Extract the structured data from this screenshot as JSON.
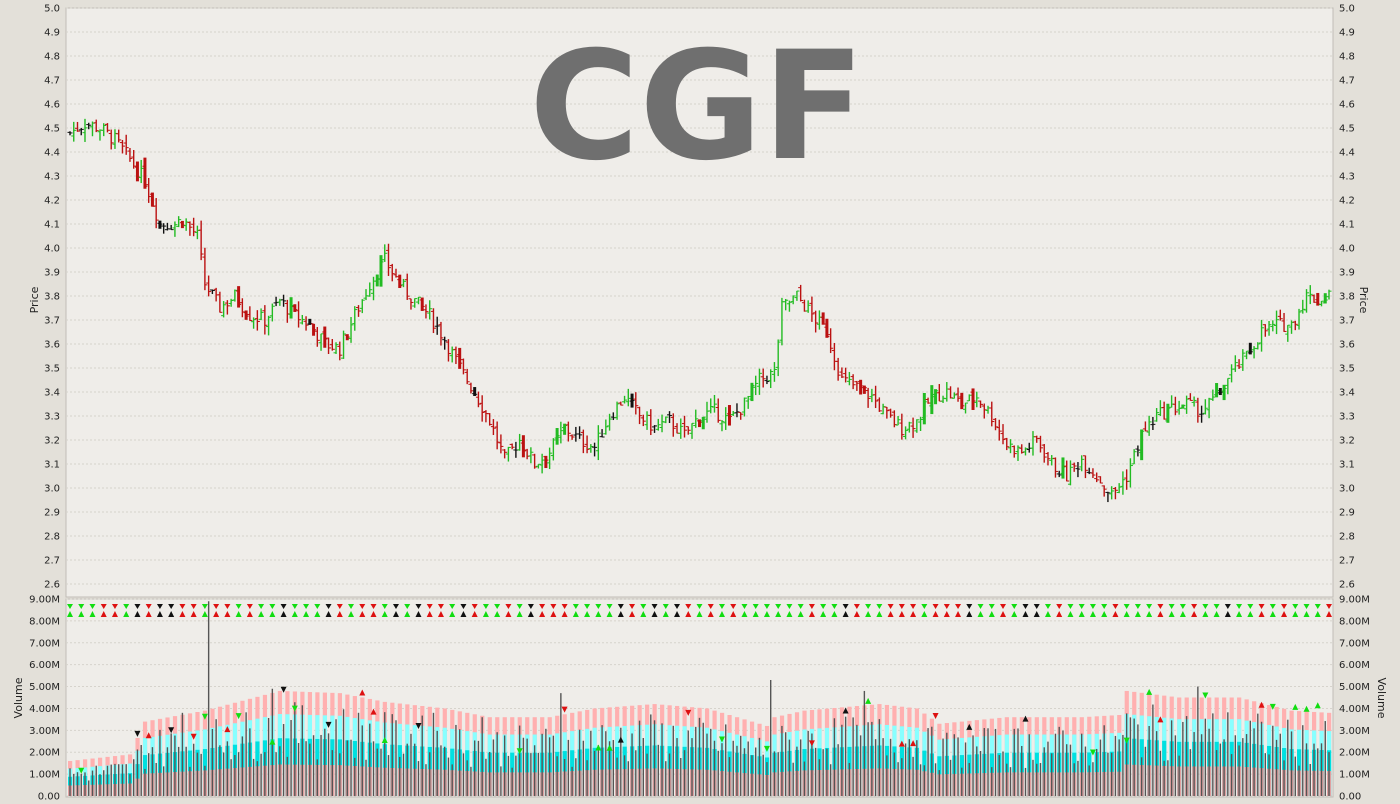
{
  "chart_data": [
    {
      "type": "ohlc",
      "title": "CGF",
      "ylabel_left": "Price",
      "ylabel_right": "Price",
      "ylim": [
        2.55,
        5.0
      ],
      "yticks": [
        "5.0",
        "4.9",
        "4.8",
        "4.7",
        "4.6",
        "4.5",
        "4.4",
        "4.3",
        "4.2",
        "4.1",
        "4.0",
        "3.9",
        "3.8",
        "3.7",
        "3.6",
        "3.5",
        "3.4",
        "3.3",
        "3.2",
        "3.1",
        "3.0",
        "2.9",
        "2.8",
        "2.7",
        "2.6"
      ],
      "grid": true,
      "colors": {
        "up": "#22bb22",
        "down": "#bb1111",
        "neutral": "#111111"
      },
      "close_path": [
        [
          0,
          4.48
        ],
        [
          4,
          4.52
        ],
        [
          8,
          4.5
        ],
        [
          12,
          4.45
        ],
        [
          16,
          4.37
        ],
        [
          20,
          4.28
        ],
        [
          24,
          4.1
        ],
        [
          28,
          4.1
        ],
        [
          30,
          4.12
        ],
        [
          34,
          4.05
        ],
        [
          36,
          3.85
        ],
        [
          40,
          3.75
        ],
        [
          44,
          3.8
        ],
        [
          48,
          3.72
        ],
        [
          52,
          3.7
        ],
        [
          56,
          3.78
        ],
        [
          60,
          3.72
        ],
        [
          64,
          3.68
        ],
        [
          68,
          3.6
        ],
        [
          72,
          3.58
        ],
        [
          76,
          3.72
        ],
        [
          80,
          3.85
        ],
        [
          84,
          3.95
        ],
        [
          88,
          3.85
        ],
        [
          92,
          3.78
        ],
        [
          96,
          3.72
        ],
        [
          100,
          3.62
        ],
        [
          104,
          3.5
        ],
        [
          108,
          3.4
        ],
        [
          112,
          3.28
        ],
        [
          116,
          3.12
        ],
        [
          120,
          3.2
        ],
        [
          124,
          3.1
        ],
        [
          128,
          3.15
        ],
        [
          132,
          3.25
        ],
        [
          136,
          3.2
        ],
        [
          140,
          3.17
        ],
        [
          144,
          3.3
        ],
        [
          148,
          3.38
        ],
        [
          152,
          3.3
        ],
        [
          156,
          3.25
        ],
        [
          160,
          3.28
        ],
        [
          164,
          3.22
        ],
        [
          168,
          3.3
        ],
        [
          172,
          3.32
        ],
        [
          176,
          3.28
        ],
        [
          180,
          3.35
        ],
        [
          184,
          3.45
        ],
        [
          188,
          3.48
        ],
        [
          190,
          3.75
        ],
        [
          194,
          3.8
        ],
        [
          198,
          3.72
        ],
        [
          202,
          3.65
        ],
        [
          206,
          3.45
        ],
        [
          210,
          3.42
        ],
        [
          214,
          3.38
        ],
        [
          218,
          3.3
        ],
        [
          222,
          3.25
        ],
        [
          226,
          3.28
        ],
        [
          230,
          3.38
        ],
        [
          234,
          3.4
        ],
        [
          238,
          3.35
        ],
        [
          242,
          3.38
        ],
        [
          246,
          3.3
        ],
        [
          250,
          3.18
        ],
        [
          254,
          3.15
        ],
        [
          258,
          3.2
        ],
        [
          262,
          3.1
        ],
        [
          266,
          3.05
        ],
        [
          270,
          3.12
        ],
        [
          274,
          3.05
        ],
        [
          278,
          2.97
        ],
        [
          282,
          3.05
        ],
        [
          286,
          3.22
        ],
        [
          290,
          3.3
        ],
        [
          294,
          3.33
        ],
        [
          298,
          3.35
        ],
        [
          302,
          3.32
        ],
        [
          306,
          3.38
        ],
        [
          310,
          3.48
        ],
        [
          314,
          3.55
        ],
        [
          318,
          3.65
        ],
        [
          322,
          3.68
        ],
        [
          326,
          3.68
        ],
        [
          330,
          3.8
        ],
        [
          334,
          3.78
        ],
        [
          336,
          3.82
        ]
      ],
      "n_bars": 337
    },
    {
      "type": "bar",
      "ylabel_left": "Volume",
      "ylabel_right": "Volume",
      "ylim": [
        0,
        9000000
      ],
      "yticks": [
        "9.00M",
        "8.00M",
        "7.00M",
        "6.00M",
        "5.00M",
        "4.00M",
        "3.00M",
        "2.00M",
        "1.00M",
        "0.00"
      ],
      "grid": true,
      "colors": {
        "bar": "#555555",
        "band_outer": "#ffb0b0",
        "band_mid": "#88ffff",
        "band_inner": "#00e0e0",
        "base": "#e0a0a0"
      },
      "band_path": [
        [
          0,
          1.6
        ],
        [
          16,
          1.9
        ],
        [
          20,
          3.4
        ],
        [
          36,
          3.9
        ],
        [
          56,
          4.8
        ],
        [
          72,
          4.7
        ],
        [
          84,
          4.3
        ],
        [
          100,
          4.0
        ],
        [
          112,
          3.6
        ],
        [
          128,
          3.6
        ],
        [
          140,
          4.0
        ],
        [
          156,
          4.2
        ],
        [
          170,
          4.0
        ],
        [
          186,
          3.2
        ],
        [
          188,
          3.6
        ],
        [
          196,
          3.9
        ],
        [
          216,
          4.2
        ],
        [
          226,
          4.0
        ],
        [
          232,
          3.3
        ],
        [
          250,
          3.6
        ],
        [
          270,
          3.6
        ],
        [
          280,
          3.7
        ],
        [
          282,
          4.8
        ],
        [
          296,
          4.5
        ],
        [
          312,
          4.5
        ],
        [
          326,
          3.9
        ],
        [
          336,
          3.8
        ]
      ],
      "spikes": [
        [
          37,
          8.9
        ],
        [
          54,
          4.9
        ],
        [
          187,
          5.3
        ],
        [
          212,
          4.8
        ],
        [
          301,
          5.0
        ],
        [
          131,
          4.7
        ],
        [
          30,
          3.8
        ],
        [
          97,
          3.8
        ],
        [
          110,
          3.6
        ]
      ]
    }
  ]
}
